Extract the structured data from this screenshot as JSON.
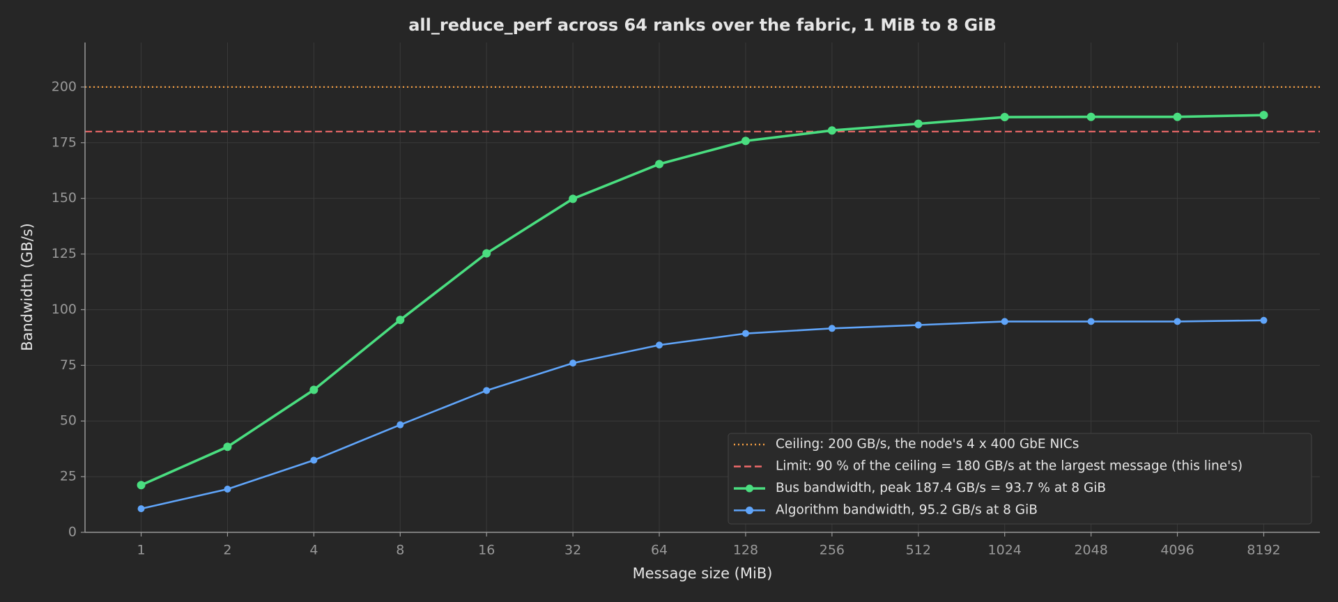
{
  "chart_data": {
    "type": "line",
    "title": "all_reduce_perf across 64 ranks over the fabric, 1 MiB to 8 GiB",
    "x_label": "Message size (MiB)",
    "y_label": "Bandwidth (GB/s)",
    "categories": [
      "1",
      "2",
      "4",
      "8",
      "16",
      "32",
      "64",
      "128",
      "256",
      "512",
      "1024",
      "2048",
      "4096",
      "8192"
    ],
    "reference_lines": [
      {
        "name": "Ceiling: 200 GB/s, the node's 4 x 400 GbE NICs",
        "value": 200,
        "color": "#f59e42",
        "style": "dotted"
      },
      {
        "name": "Limit: 90 % of the ceiling = 180 GB/s at the largest message (this line's)",
        "value": 180,
        "color": "#f06a6a",
        "style": "dashed"
      }
    ],
    "series": [
      {
        "name": "Bus bandwidth, peak 187.4 GB/s = 93.7 % at 8 GiB",
        "color": "#4ade80",
        "values": [
          21.2,
          38.4,
          64.0,
          95.4,
          125.3,
          149.8,
          165.4,
          175.8,
          180.5,
          183.5,
          186.5,
          186.6,
          186.6,
          187.4
        ]
      },
      {
        "name": "Algorithm bandwidth, 95.2 GB/s at 8 GiB",
        "color": "#60a5fa",
        "values": [
          10.6,
          19.4,
          32.4,
          48.3,
          63.7,
          76.0,
          84.1,
          89.3,
          91.6,
          93.1,
          94.7,
          94.7,
          94.7,
          95.2
        ]
      }
    ],
    "ylim": [
      0,
      220
    ],
    "yticks": [
      0,
      25,
      50,
      75,
      100,
      125,
      150,
      175,
      200
    ],
    "grid": true,
    "legend": "lower right"
  }
}
